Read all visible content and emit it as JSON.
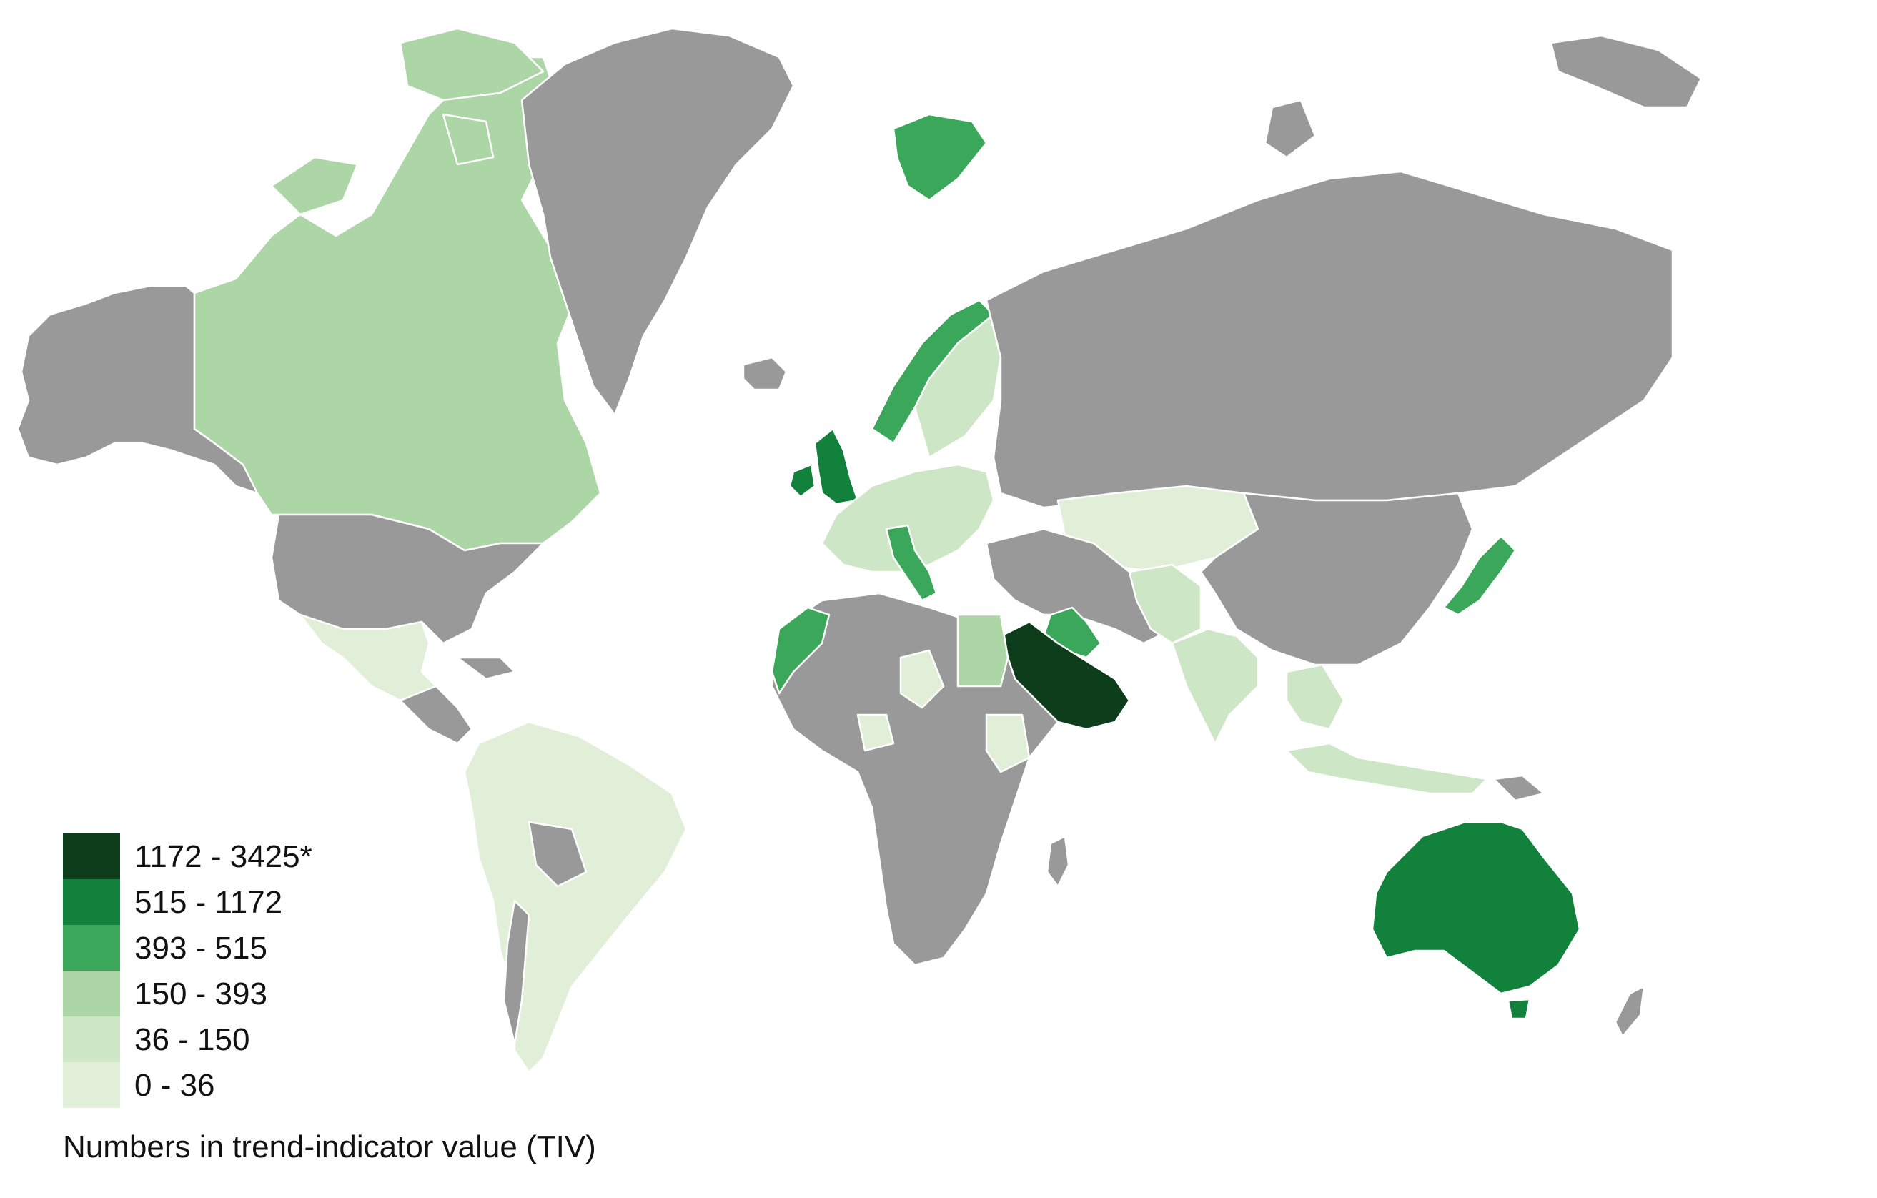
{
  "colors": {
    "background": "#ffffff",
    "no_data": "#999999",
    "border": "#ffffff",
    "bins": [
      "#0e3d1c",
      "#12813c",
      "#3aa75a",
      "#acd6a6",
      "#cde6c6",
      "#e1efd8"
    ]
  },
  "legend": {
    "items": [
      {
        "label": "1172 - 3425*",
        "color": "#0e3d1c"
      },
      {
        "label": "515 - 1172",
        "color": "#12813c"
      },
      {
        "label": "393 - 515",
        "color": "#3aa75a"
      },
      {
        "label": "150 - 393",
        "color": "#acd6a6"
      },
      {
        "label": "36 - 150",
        "color": "#cde6c6"
      },
      {
        "label": "0 - 36",
        "color": "#e1efd8"
      }
    ]
  },
  "caption": "Numbers in trend-indicator value (TIV)",
  "countries": {
    "saudi-arabia": "1172 - 3425*",
    "united-kingdom": "515 - 1172",
    "australia": "515 - 1172",
    "iraq": "393 - 515",
    "morocco": "393 - 515",
    "japan": "393 - 515",
    "italy": "393 - 515",
    "norway": "393 - 515",
    "svalbard": "393 - 515",
    "canada": "150 - 393",
    "egypt": "150 - 393",
    "india": "36 - 150",
    "brazil": "0 - 36",
    "mexico": "0 - 36",
    "kazakhstan": "0 - 36",
    "indonesia": "36 - 150"
  }
}
